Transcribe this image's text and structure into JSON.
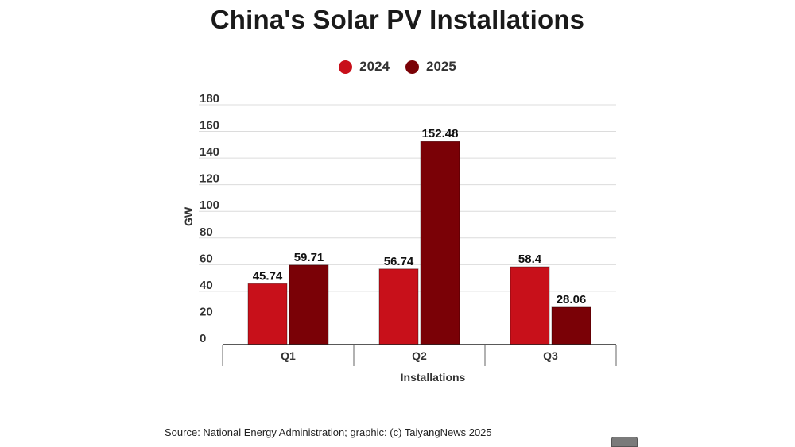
{
  "chart_data": {
    "type": "bar",
    "title": "China's Solar PV Installations",
    "xlabel": "Installations",
    "ylabel": "GW",
    "ylim": [
      0,
      180
    ],
    "yticks": [
      0,
      20,
      40,
      60,
      80,
      100,
      120,
      140,
      160,
      180
    ],
    "categories": [
      "Q1",
      "Q2",
      "Q3"
    ],
    "series": [
      {
        "name": "2024",
        "color": "#c8101a",
        "values": [
          45.74,
          56.74,
          58.4
        ],
        "labels": [
          "45.74",
          "56.74",
          "58.4"
        ]
      },
      {
        "name": "2025",
        "color": "#7a0106",
        "values": [
          59.71,
          152.48,
          28.06
        ],
        "labels": [
          "59.71",
          "152.48",
          "28.06"
        ]
      }
    ],
    "grid": true,
    "legend_position": "top-center"
  },
  "source": "Source: National Energy Administration; graphic: (c) TaiyangNews 2025"
}
